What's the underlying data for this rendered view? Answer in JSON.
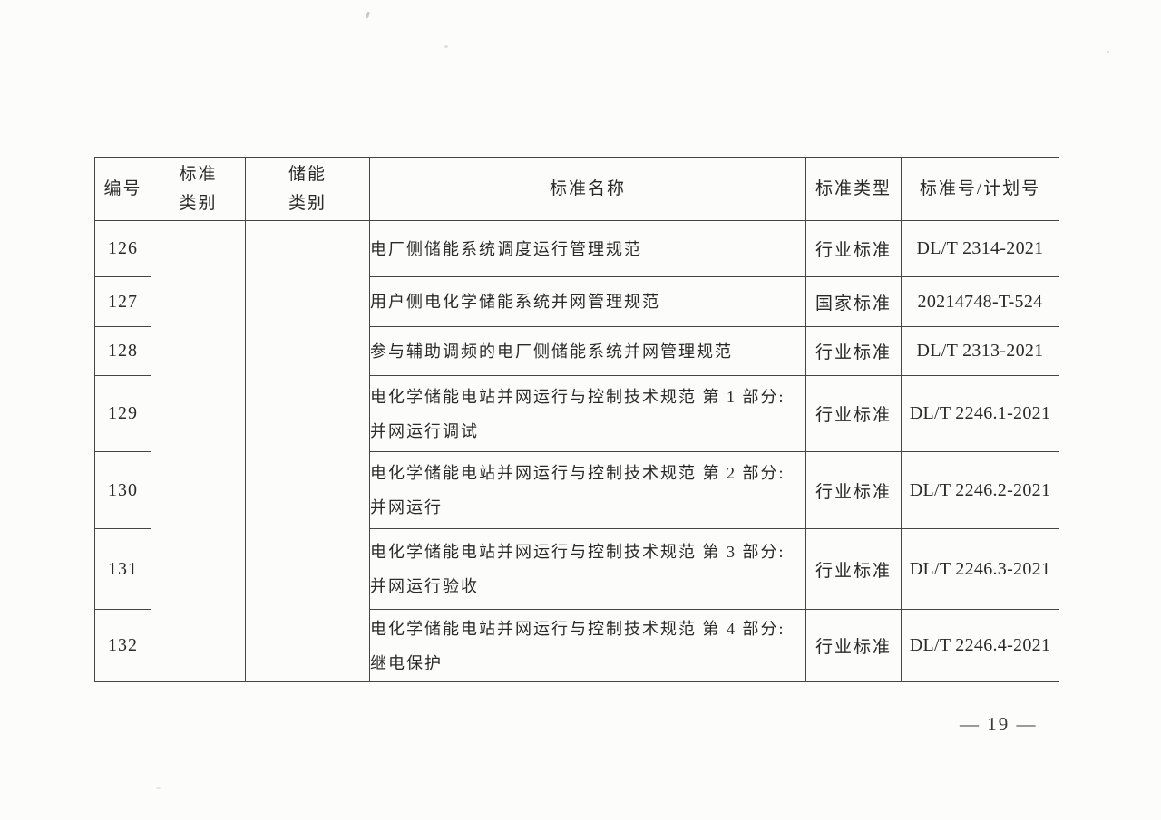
{
  "page": {
    "number_label": "— 19 —"
  },
  "table": {
    "headers": [
      {
        "label": "编号"
      },
      {
        "label": "标准\n类别"
      },
      {
        "label": "储能\n类别"
      },
      {
        "label": "标准名称"
      },
      {
        "label": "标准类型"
      },
      {
        "label": "标准号/计划号"
      }
    ],
    "merged_columns": {
      "standard_category": "",
      "storage_category": ""
    },
    "rows": [
      {
        "no": "126",
        "name": "电厂侧储能系统调度运行管理规范",
        "type": "行业标准",
        "code": "DL/T 2314-2021"
      },
      {
        "no": "127",
        "name": "用户侧电化学储能系统并网管理规范",
        "type": "国家标准",
        "code": "20214748-T-524"
      },
      {
        "no": "128",
        "name": "参与辅助调频的电厂侧储能系统并网管理规范",
        "type": "行业标准",
        "code": "DL/T 2313-2021"
      },
      {
        "no": "129",
        "name": "电化学储能电站并网运行与控制技术规范 第 1 部分: 并网运行调试",
        "type": "行业标准",
        "code": "DL/T 2246.1-2021"
      },
      {
        "no": "130",
        "name": "电化学储能电站并网运行与控制技术规范 第 2 部分: 并网运行",
        "type": "行业标准",
        "code": "DL/T 2246.2-2021"
      },
      {
        "no": "131",
        "name": "电化学储能电站并网运行与控制技术规范 第 3 部分: 并网运行验收",
        "type": "行业标准",
        "code": "DL/T 2246.3-2021"
      },
      {
        "no": "132",
        "name": "电化学储能电站并网运行与控制技术规范 第 4 部分: 继电保护",
        "type": "行业标准",
        "code": "DL/T 2246.4-2021"
      }
    ]
  }
}
